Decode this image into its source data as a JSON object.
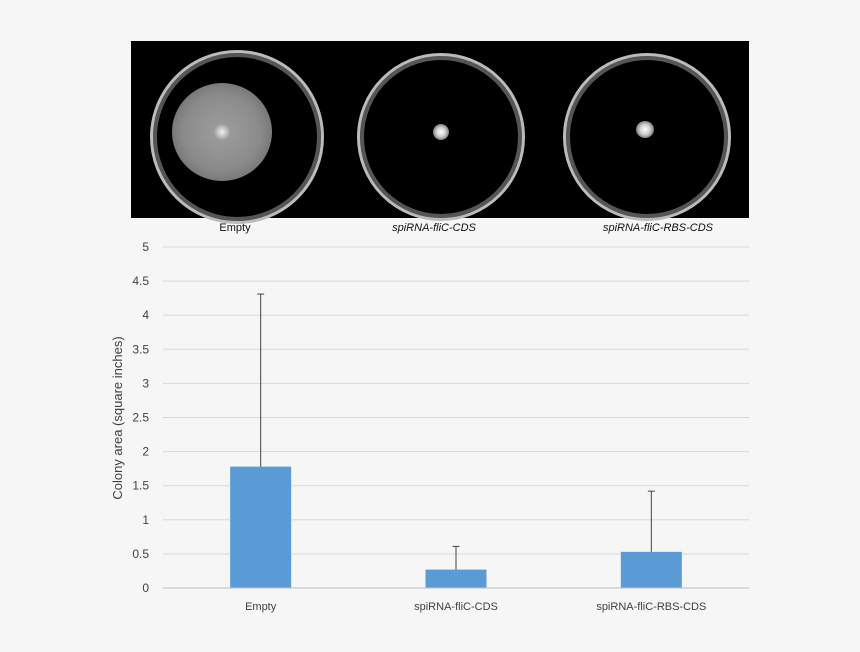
{
  "photo_panel": {
    "plates": [
      {
        "label": "Empty",
        "italic": false,
        "spread": "large"
      },
      {
        "label": "spiRNA-fliC-CDS",
        "italic": true,
        "spread": "small"
      },
      {
        "label": "spiRNA-fliC-RBS-CDS",
        "italic": true,
        "spread": "small"
      }
    ]
  },
  "chart_data": {
    "type": "bar",
    "categories": [
      "Empty",
      "spiRNA-fliC-CDS",
      "spiRNA-fliC-RBS-CDS"
    ],
    "values": [
      1.78,
      0.27,
      0.53
    ],
    "error_upper": [
      4.31,
      0.61,
      1.42
    ],
    "ylabel": "Colony area (square inches)",
    "xlabel": "",
    "title": "",
    "ylim": [
      0,
      5
    ],
    "yticks": [
      "0",
      "0.5",
      "1",
      "1.5",
      "2",
      "2.5",
      "3",
      "3.5",
      "4",
      "4.5",
      "5"
    ],
    "grid": true,
    "bar_color": "#5b9bd5",
    "grid_color": "#d9d9d9",
    "error_color": "#444444"
  }
}
